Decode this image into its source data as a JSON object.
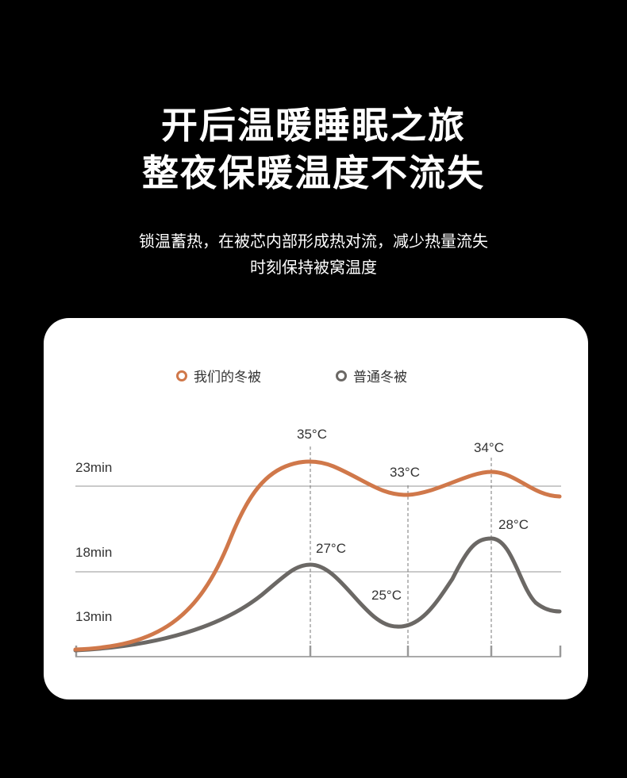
{
  "header": {
    "title_line1": "开后温暖睡眠之旅",
    "title_line2": "整夜保暖温度不流失",
    "subtitle_line1": "锁温蓄热，在被芯内部形成热对流，减少热量流失",
    "subtitle_line2": "时刻保持被窝温度"
  },
  "chart_data": {
    "type": "line",
    "ytick_labels": [
      "23min",
      "18min",
      "13min"
    ],
    "grid": "horizontal lines at 23min and 18min",
    "legend_position": "top-center",
    "series": [
      {
        "name": "我们的冬被",
        "color": "#d0784a",
        "annotations": [
          "35°C",
          "33°C",
          "34°C"
        ]
      },
      {
        "name": "普通冬被",
        "color": "#6b6865",
        "annotations": [
          "27°C",
          "25°C",
          "28°C"
        ]
      }
    ]
  }
}
